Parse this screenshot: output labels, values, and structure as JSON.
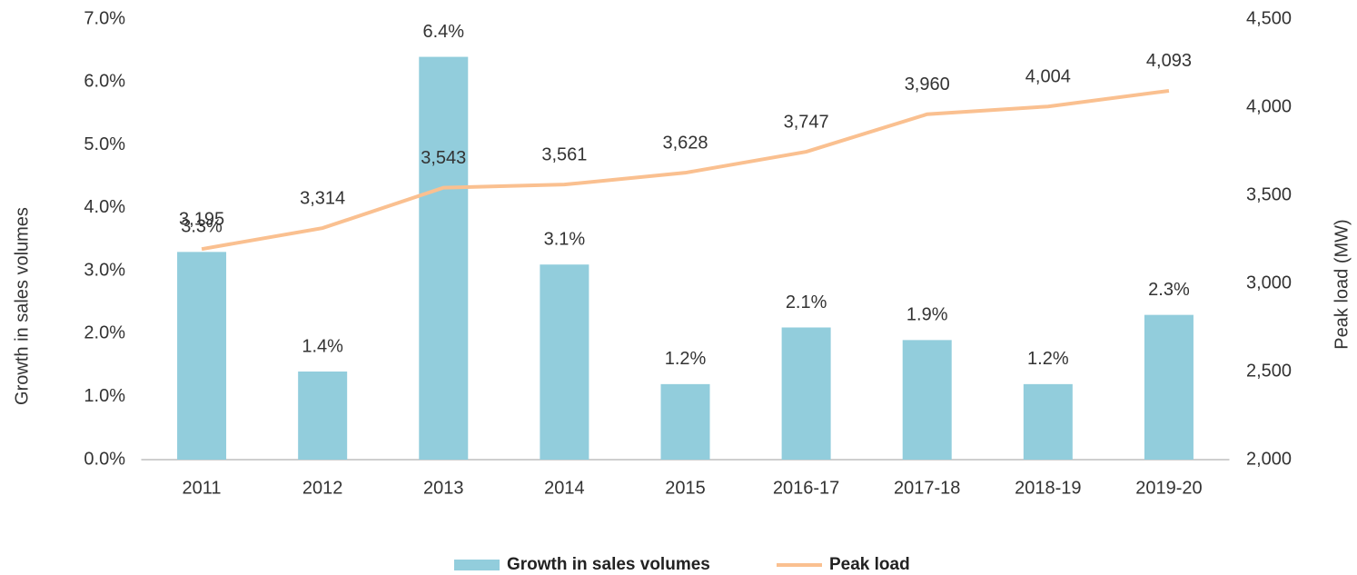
{
  "chart_data": {
    "type": "bar",
    "categories": [
      "2011",
      "2012",
      "2013",
      "2014",
      "2015",
      "2016-17",
      "2017-18",
      "2018-19",
      "2019-20"
    ],
    "y_label": "Growth in sales volumes",
    "y2_label": "Peak load (MW)",
    "ylim": [
      0,
      7
    ],
    "yticks": [
      {
        "value": 0,
        "label": "0.0%"
      },
      {
        "value": 1,
        "label": "1.0%"
      },
      {
        "value": 2,
        "label": "2.0%"
      },
      {
        "value": 3,
        "label": "3.0%"
      },
      {
        "value": 4,
        "label": "4.0%"
      },
      {
        "value": 5,
        "label": "5.0%"
      },
      {
        "value": 6,
        "label": "6.0%"
      },
      {
        "value": 7,
        "label": "7.0%"
      }
    ],
    "y2lim": [
      2000,
      4500
    ],
    "y2ticks": [
      {
        "value": 2000,
        "label": "2,000"
      },
      {
        "value": 2500,
        "label": "2,500"
      },
      {
        "value": 3000,
        "label": "3,000"
      },
      {
        "value": 3500,
        "label": "3,500"
      },
      {
        "value": 4000,
        "label": "4,000"
      },
      {
        "value": 4500,
        "label": "4,500"
      }
    ],
    "legend": "bottom",
    "series": [
      {
        "name": "Growth in sales volumes",
        "type": "bar",
        "axis": "y",
        "color": "#92cddc",
        "values": [
          3.3,
          1.4,
          6.4,
          3.1,
          1.2,
          2.1,
          1.9,
          1.2,
          2.3
        ],
        "value_labels": [
          "3.3%",
          "1.4%",
          "6.4%",
          "3.1%",
          "1.2%",
          "2.1%",
          "1.9%",
          "1.2%",
          "2.3%"
        ]
      },
      {
        "name": "Peak load",
        "type": "line",
        "axis": "y2",
        "color": "#fac090",
        "values": [
          3195,
          3314,
          3543,
          3561,
          3628,
          3747,
          3960,
          4004,
          4093
        ],
        "value_labels": [
          "3,195",
          "3,314",
          "3,543",
          "3,561",
          "3,628",
          "3,747",
          "3,960",
          "4,004",
          "4,093"
        ]
      }
    ]
  }
}
